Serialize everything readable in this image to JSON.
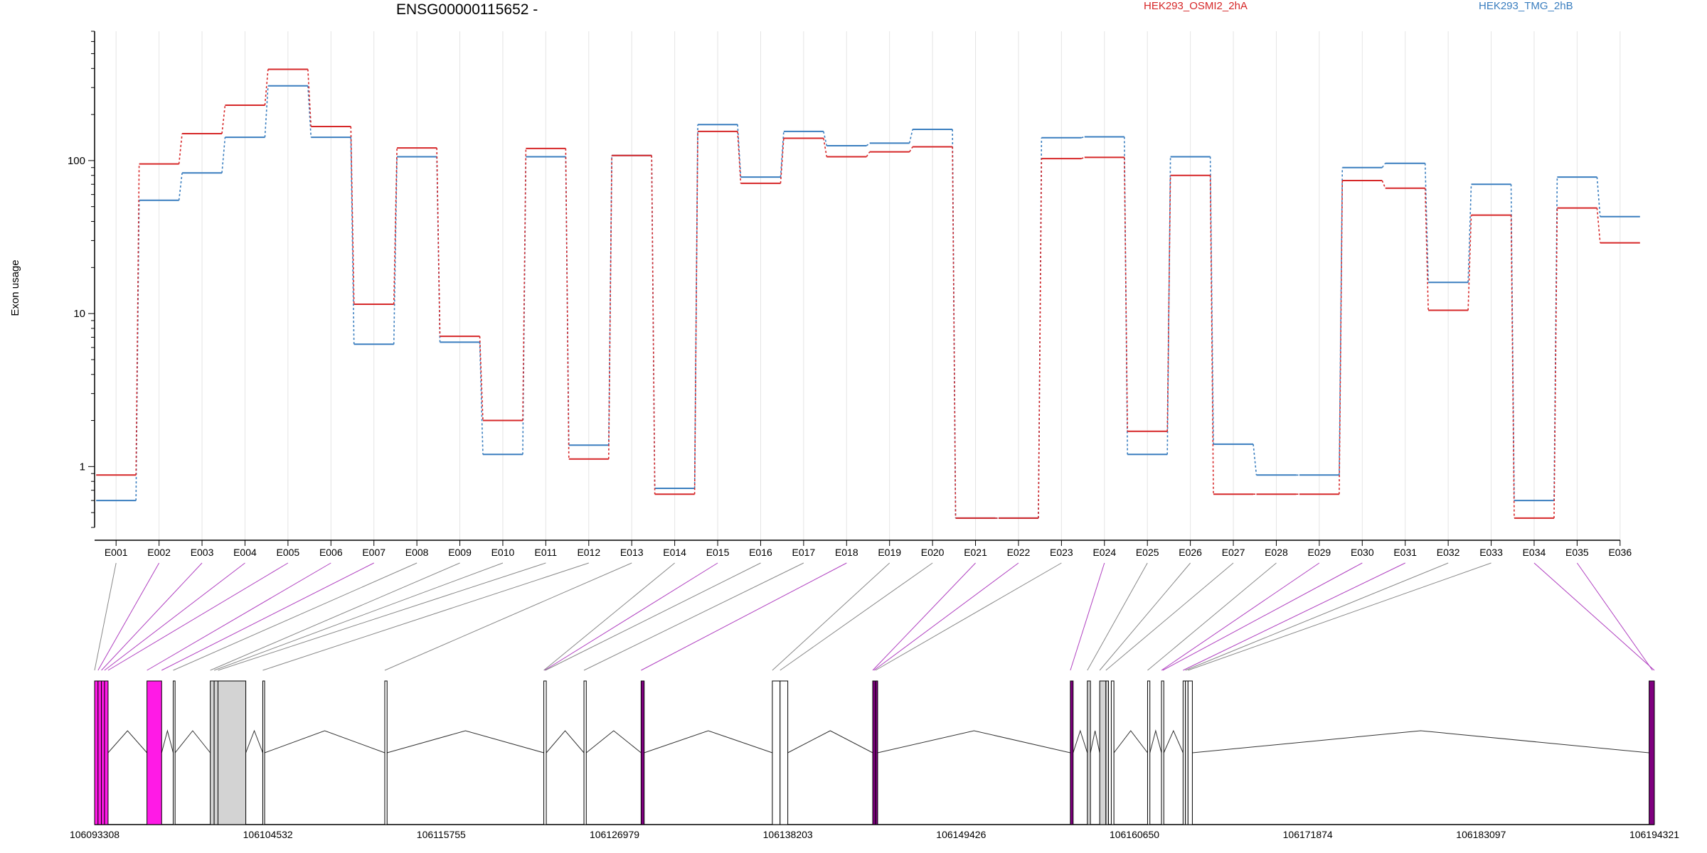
{
  "chart_data": {
    "type": "line",
    "title": "ENSG00000115652 -",
    "ylabel": "Exon usage",
    "yscale": "log",
    "ylim": [
      0.4,
      700
    ],
    "y_ticks": [
      1,
      10,
      100
    ],
    "y_tick_labels": [
      "1",
      "10",
      "100"
    ],
    "categories": [
      "E001",
      "E002",
      "E003",
      "E004",
      "E005",
      "E006",
      "E007",
      "E008",
      "E009",
      "E010",
      "E011",
      "E012",
      "E013",
      "E014",
      "E015",
      "E016",
      "E017",
      "E018",
      "E019",
      "E020",
      "E021",
      "E022",
      "E023",
      "E024",
      "E025",
      "E026",
      "E027",
      "E028",
      "E029",
      "E030",
      "E031",
      "E032",
      "E033",
      "E034",
      "E035",
      "E036"
    ],
    "series": [
      {
        "name": "HEK293_OSMI2_2hA",
        "color": "#d62728",
        "values": [
          0.88,
          95,
          150,
          230,
          395,
          167,
          11.5,
          121,
          7.1,
          2.0,
          120,
          1.12,
          108,
          0.66,
          155,
          71,
          140,
          106,
          114,
          123,
          0.46,
          0.46,
          103,
          105,
          1.7,
          80,
          0.66,
          0.66,
          0.66,
          74,
          66,
          10.5,
          44,
          0.46,
          49,
          29
        ]
      },
      {
        "name": "HEK293_TMG_2hB",
        "color": "#3a7ebf",
        "values": [
          0.6,
          55,
          83,
          142,
          308,
          142,
          6.3,
          106,
          6.5,
          1.2,
          106,
          1.38,
          108,
          0.72,
          172,
          78,
          155,
          125,
          130,
          160,
          0.46,
          0.46,
          141,
          143,
          1.2,
          106,
          1.4,
          0.88,
          0.88,
          90,
          96,
          16,
          70,
          0.6,
          78,
          43
        ]
      }
    ],
    "gene_model": {
      "coordinate_labels": [
        "106093308",
        "106104532",
        "106115755",
        "106126979",
        "106138203",
        "106149426",
        "106160650",
        "106171874",
        "106183097",
        "106194321"
      ],
      "coordinate_range": [
        106093308,
        106194321
      ],
      "exons": [
        {
          "s": 106093308,
          "e": 106093530,
          "fill": "#ff1ae6"
        },
        {
          "s": 106093530,
          "e": 106093750,
          "fill": "#ff1ae6"
        },
        {
          "s": 106093750,
          "e": 106093950,
          "fill": "#ff1ae6"
        },
        {
          "s": 106093950,
          "e": 106094180,
          "fill": "#ff1ae6"
        },
        {
          "s": 106096700,
          "e": 106097650,
          "fill": "#ff1ae6"
        },
        {
          "s": 106098400,
          "e": 106098520,
          "fill": "#ffffff"
        },
        {
          "s": 106100800,
          "e": 106101050,
          "fill": "#d3d3d3"
        },
        {
          "s": 106101050,
          "e": 106101300,
          "fill": "#d3d3d3"
        },
        {
          "s": 106101300,
          "e": 106103100,
          "fill": "#d3d3d3"
        },
        {
          "s": 106104200,
          "e": 106104320,
          "fill": "#ffffff"
        },
        {
          "s": 106112100,
          "e": 106112250,
          "fill": "#ffffff"
        },
        {
          "s": 106122400,
          "e": 106122560,
          "fill": "#ffffff"
        },
        {
          "s": 106125000,
          "e": 106125150,
          "fill": "#ffffff"
        },
        {
          "s": 106128700,
          "e": 106128900,
          "fill": "#800080"
        },
        {
          "s": 106137200,
          "e": 106137700,
          "fill": "#ffffff"
        },
        {
          "s": 106137700,
          "e": 106138200,
          "fill": "#ffffff"
        },
        {
          "s": 106143700,
          "e": 106143880,
          "fill": "#800080"
        },
        {
          "s": 106143880,
          "e": 106144020,
          "fill": "#800080"
        },
        {
          "s": 106156500,
          "e": 106156680,
          "fill": "#800080"
        },
        {
          "s": 106157600,
          "e": 106157800,
          "fill": "#d3d3d3"
        },
        {
          "s": 106158400,
          "e": 106158800,
          "fill": "#d3d3d3"
        },
        {
          "s": 106158800,
          "e": 106158970,
          "fill": "#d3d3d3"
        },
        {
          "s": 106159150,
          "e": 106159320,
          "fill": "#ffffff"
        },
        {
          "s": 106161500,
          "e": 106161650,
          "fill": "#ffffff"
        },
        {
          "s": 106162400,
          "e": 106162550,
          "fill": "#ffffff"
        },
        {
          "s": 106163800,
          "e": 106163950,
          "fill": "#ffffff"
        },
        {
          "s": 106163950,
          "e": 106164120,
          "fill": "#ffffff"
        },
        {
          "s": 106164120,
          "e": 106164400,
          "fill": "#ffffff"
        },
        {
          "s": 106193980,
          "e": 106194321,
          "fill": "#800080"
        }
      ],
      "exon_links": [
        {
          "s": 106093308,
          "c": "#888888"
        },
        {
          "s": 106093530,
          "c": "#b040c0"
        },
        {
          "s": 106093750,
          "c": "#b040c0"
        },
        {
          "s": 106093950,
          "c": "#b040c0"
        },
        {
          "s": 106094180,
          "c": "#b040c0"
        },
        {
          "s": 106096700,
          "c": "#b040c0"
        },
        {
          "s": 106097650,
          "c": "#b040c0"
        },
        {
          "s": 106098400,
          "c": "#888888"
        },
        {
          "s": 106100800,
          "c": "#888888"
        },
        {
          "s": 106101050,
          "c": "#888888"
        },
        {
          "s": 106101300,
          "c": "#888888"
        },
        {
          "s": 106104200,
          "c": "#888888"
        },
        {
          "s": 106112100,
          "c": "#888888"
        },
        {
          "s": 106122400,
          "c": "#888888"
        },
        {
          "s": 106122450,
          "c": "#b040c0"
        },
        {
          "s": 106122500,
          "c": "#888888"
        },
        {
          "s": 106125000,
          "c": "#888888"
        },
        {
          "s": 106128700,
          "c": "#b040c0"
        },
        {
          "s": 106137200,
          "c": "#888888"
        },
        {
          "s": 106137700,
          "c": "#888888"
        },
        {
          "s": 106143700,
          "c": "#b040c0"
        },
        {
          "s": 106143780,
          "c": "#b040c0"
        },
        {
          "s": 106143880,
          "c": "#888888"
        },
        {
          "s": 106156500,
          "c": "#b040c0"
        },
        {
          "s": 106157600,
          "c": "#888888"
        },
        {
          "s": 106158400,
          "c": "#888888"
        },
        {
          "s": 106158800,
          "c": "#888888"
        },
        {
          "s": 106161500,
          "c": "#888888"
        },
        {
          "s": 106162400,
          "c": "#b040c0"
        },
        {
          "s": 106162480,
          "c": "#b040c0"
        },
        {
          "s": 106163800,
          "c": "#b040c0"
        },
        {
          "s": 106163950,
          "c": "#888888"
        },
        {
          "s": 106164120,
          "c": "#888888"
        },
        {
          "s": 106194321,
          "c": "#b040c0"
        },
        {
          "s": 106194200,
          "c": "#b040c0"
        }
      ]
    }
  }
}
